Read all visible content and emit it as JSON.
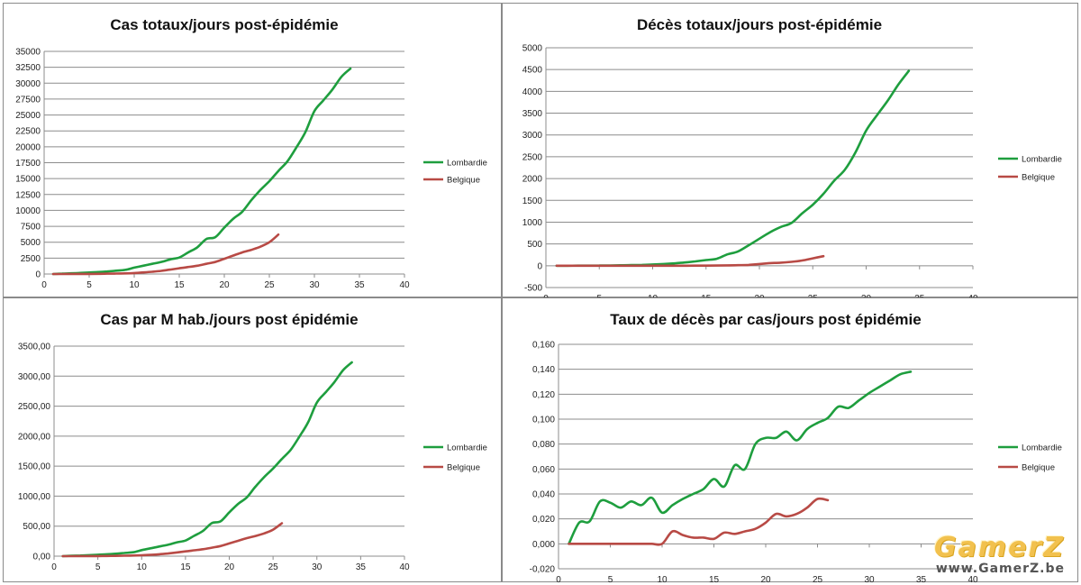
{
  "chart_data": [
    {
      "id": "p1",
      "type": "line",
      "title": "Cas totaux/jours post-épidémie",
      "xlabel": "",
      "ylabel": "",
      "xlim": [
        0,
        40
      ],
      "ylim": [
        0,
        35000
      ],
      "xticks": [
        0,
        5,
        10,
        15,
        20,
        25,
        30,
        35,
        40
      ],
      "xtick_labels": [
        "0",
        "5",
        "10",
        "15",
        "20",
        "25",
        "30",
        "35",
        "40"
      ],
      "yticks": [
        0,
        2500,
        5000,
        7500,
        10000,
        12500,
        15000,
        17500,
        20000,
        22500,
        25000,
        27500,
        30000,
        32500,
        35000
      ],
      "ytick_labels": [
        "0",
        "2500",
        "5000",
        "7500",
        "10000",
        "12500",
        "15000",
        "17500",
        "20000",
        "22500",
        "25000",
        "27500",
        "30000",
        "32500",
        "35000"
      ],
      "grid": "horizontal",
      "legend": "right",
      "series": [
        {
          "name": "Lombardie",
          "color": "#1e9e3e",
          "x": [
            1,
            2,
            3,
            4,
            5,
            6,
            7,
            8,
            9,
            10,
            11,
            12,
            13,
            14,
            15,
            16,
            17,
            18,
            19,
            20,
            21,
            22,
            23,
            24,
            25,
            26,
            27,
            28,
            29,
            30,
            31,
            32,
            33,
            34
          ],
          "y": [
            0,
            60,
            110,
            170,
            240,
            310,
            400,
            530,
            650,
            1000,
            1300,
            1600,
            1900,
            2300,
            2600,
            3400,
            4200,
            5500,
            5800,
            7300,
            8700,
            9800,
            11600,
            13200,
            14600,
            16200,
            17700,
            19900,
            22300,
            25600,
            27300,
            29000,
            31000,
            32300
          ]
        },
        {
          "name": "Belgique",
          "color": "#b84a45",
          "x": [
            1,
            2,
            3,
            4,
            5,
            6,
            7,
            8,
            9,
            10,
            11,
            12,
            13,
            14,
            15,
            16,
            17,
            18,
            19,
            20,
            21,
            22,
            23,
            24,
            25,
            26
          ],
          "y": [
            0,
            5,
            10,
            15,
            20,
            30,
            50,
            70,
            100,
            150,
            250,
            350,
            500,
            700,
            900,
            1100,
            1300,
            1600,
            1900,
            2400,
            2900,
            3400,
            3800,
            4300,
            5000,
            6200
          ]
        }
      ]
    },
    {
      "id": "p2",
      "type": "line",
      "title": "Décès totaux/jours post-épidémie",
      "xlabel": "",
      "ylabel": "",
      "xlim": [
        0,
        40
      ],
      "ylim": [
        -500,
        5000
      ],
      "xticks": [
        0,
        5,
        10,
        15,
        20,
        25,
        30,
        35,
        40
      ],
      "xtick_labels": [
        "0",
        "5",
        "10",
        "15",
        "20",
        "25",
        "30",
        "35",
        "40"
      ],
      "yticks": [
        -500,
        0,
        500,
        1000,
        1500,
        2000,
        2500,
        3000,
        3500,
        4000,
        4500,
        5000
      ],
      "ytick_labels": [
        "-500",
        "0",
        "500",
        "1000",
        "1500",
        "2000",
        "2500",
        "3000",
        "3500",
        "4000",
        "4500",
        "5000"
      ],
      "grid": "horizontal",
      "legend": "right",
      "series": [
        {
          "name": "Lombardie",
          "color": "#1e9e3e",
          "x": [
            1,
            2,
            3,
            4,
            5,
            6,
            7,
            8,
            9,
            10,
            11,
            12,
            13,
            14,
            15,
            16,
            17,
            18,
            19,
            20,
            21,
            22,
            23,
            24,
            25,
            26,
            27,
            28,
            29,
            30,
            31,
            32,
            33,
            34
          ],
          "y": [
            0,
            1,
            2,
            3,
            5,
            7,
            10,
            15,
            20,
            30,
            40,
            55,
            75,
            100,
            130,
            160,
            260,
            330,
            470,
            620,
            770,
            890,
            980,
            1200,
            1400,
            1650,
            1950,
            2200,
            2600,
            3100,
            3450,
            3780,
            4150,
            4470
          ]
        },
        {
          "name": "Belgique",
          "color": "#b84a45",
          "x": [
            1,
            2,
            3,
            4,
            5,
            6,
            7,
            8,
            9,
            10,
            11,
            12,
            13,
            14,
            15,
            16,
            17,
            18,
            19,
            20,
            21,
            22,
            23,
            24,
            25,
            26
          ],
          "y": [
            0,
            0,
            0,
            0,
            0,
            0,
            0,
            0,
            0,
            0,
            0,
            0,
            1,
            2,
            3,
            5,
            8,
            12,
            20,
            40,
            60,
            70,
            90,
            120,
            170,
            220
          ]
        }
      ]
    },
    {
      "id": "p3",
      "type": "line",
      "title": "Cas par M hab./jours post épidémie",
      "xlabel": "",
      "ylabel": "",
      "xlim": [
        0,
        40
      ],
      "ylim": [
        0,
        3500
      ],
      "xticks": [
        0,
        5,
        10,
        15,
        20,
        25,
        30,
        35,
        40
      ],
      "xtick_labels": [
        "0",
        "5",
        "10",
        "15",
        "20",
        "25",
        "30",
        "35",
        "40"
      ],
      "yticks": [
        0,
        500,
        1000,
        1500,
        2000,
        2500,
        3000,
        3500
      ],
      "ytick_labels": [
        "0,00",
        "500,00",
        "1000,00",
        "1500,00",
        "2000,00",
        "2500,00",
        "3000,00",
        "3500,00"
      ],
      "grid": "horizontal",
      "legend": "right",
      "series": [
        {
          "name": "Lombardie",
          "color": "#1e9e3e",
          "x": [
            1,
            2,
            3,
            4,
            5,
            6,
            7,
            8,
            9,
            10,
            11,
            12,
            13,
            14,
            15,
            16,
            17,
            18,
            19,
            20,
            21,
            22,
            23,
            24,
            25,
            26,
            27,
            28,
            29,
            30,
            31,
            32,
            33,
            34
          ],
          "y": [
            0,
            6,
            11,
            17,
            24,
            31,
            40,
            53,
            65,
            100,
            130,
            160,
            190,
            230,
            260,
            340,
            420,
            550,
            580,
            730,
            870,
            980,
            1160,
            1320,
            1460,
            1620,
            1770,
            1990,
            2230,
            2560,
            2730,
            2900,
            3100,
            3230
          ]
        },
        {
          "name": "Belgique",
          "color": "#b84a45",
          "x": [
            1,
            2,
            3,
            4,
            5,
            6,
            7,
            8,
            9,
            10,
            11,
            12,
            13,
            14,
            15,
            16,
            17,
            18,
            19,
            20,
            21,
            22,
            23,
            24,
            25,
            26
          ],
          "y": [
            0,
            0.5,
            1,
            1.5,
            2,
            3,
            5,
            7,
            10,
            15,
            22,
            31,
            44,
            62,
            79,
            97,
            115,
            141,
            168,
            212,
            256,
            300,
            336,
            380,
            442,
            548
          ]
        }
      ]
    },
    {
      "id": "p4",
      "type": "line",
      "title": "Taux de décès par cas/jours post épidémie",
      "xlabel": "",
      "ylabel": "",
      "xlim": [
        0,
        40
      ],
      "ylim": [
        -0.02,
        0.16
      ],
      "xticks": [
        0,
        5,
        10,
        15,
        20,
        25,
        30,
        35,
        40
      ],
      "xtick_labels": [
        "0",
        "5",
        "10",
        "15",
        "20",
        "25",
        "30",
        "35",
        "40"
      ],
      "yticks": [
        -0.02,
        0,
        0.02,
        0.04,
        0.06,
        0.08,
        0.1,
        0.12,
        0.14,
        0.16
      ],
      "ytick_labels": [
        "-0,020",
        "0,000",
        "0,020",
        "0,040",
        "0,060",
        "0,080",
        "0,100",
        "0,120",
        "0,140",
        "0,160"
      ],
      "grid": "horizontal",
      "legend": "right",
      "series": [
        {
          "name": "Lombardie",
          "color": "#1e9e3e",
          "x": [
            1,
            2,
            3,
            4,
            5,
            6,
            7,
            8,
            9,
            10,
            11,
            12,
            13,
            14,
            15,
            16,
            17,
            18,
            19,
            20,
            21,
            22,
            23,
            24,
            25,
            26,
            27,
            28,
            29,
            30,
            31,
            32,
            33,
            34
          ],
          "y": [
            0,
            0.017,
            0.018,
            0.034,
            0.033,
            0.029,
            0.034,
            0.031,
            0.037,
            0.025,
            0.031,
            0.036,
            0.04,
            0.044,
            0.052,
            0.046,
            0.063,
            0.06,
            0.08,
            0.085,
            0.085,
            0.09,
            0.083,
            0.092,
            0.097,
            0.101,
            0.11,
            0.109,
            0.115,
            0.121,
            0.126,
            0.131,
            0.136,
            0.138
          ]
        },
        {
          "name": "Belgique",
          "color": "#b84a45",
          "x": [
            1,
            2,
            3,
            4,
            5,
            6,
            7,
            8,
            9,
            10,
            11,
            12,
            13,
            14,
            15,
            16,
            17,
            18,
            19,
            20,
            21,
            22,
            23,
            24,
            25,
            26
          ],
          "y": [
            0,
            0,
            0,
            0,
            0,
            0,
            0,
            0,
            0,
            0,
            0.01,
            0.007,
            0.005,
            0.005,
            0.004,
            0.009,
            0.008,
            0.01,
            0.012,
            0.017,
            0.024,
            0.022,
            0.024,
            0.029,
            0.036,
            0.035
          ]
        }
      ]
    }
  ],
  "watermark": {
    "logo": "GamerZ",
    "url": "www.GamerZ.be"
  }
}
